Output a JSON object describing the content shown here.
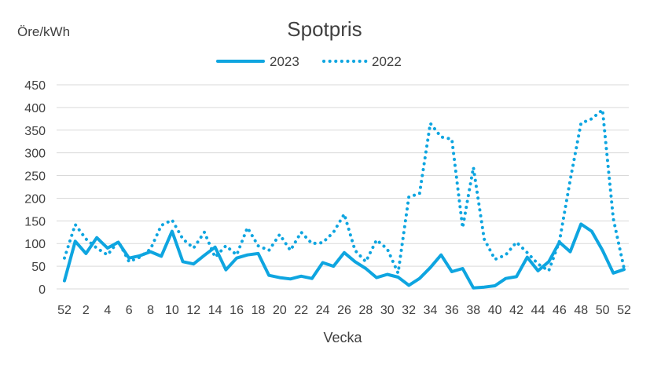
{
  "chart_data": {
    "type": "line",
    "title": "Spotpris",
    "ylabel": "Öre/kWh",
    "xlabel": "Vecka",
    "ylim": [
      0,
      450
    ],
    "yticks": [
      "0",
      "50",
      "100",
      "150",
      "200",
      "250",
      "300",
      "350",
      "400",
      "450"
    ],
    "xticks": [
      "52",
      "2",
      "4",
      "6",
      "8",
      "10",
      "12",
      "14",
      "16",
      "18",
      "20",
      "22",
      "24",
      "26",
      "28",
      "30",
      "32",
      "34",
      "36",
      "38",
      "40",
      "42",
      "44",
      "46",
      "48",
      "50",
      "52"
    ],
    "grid": true,
    "legend": "top-center",
    "series": [
      {
        "name": "2023",
        "style": "solid",
        "color": "#0ea5e0",
        "x": [
          52,
          1,
          2,
          3,
          4,
          5,
          6,
          7,
          8,
          9,
          10,
          11,
          12,
          13,
          14,
          15,
          16,
          17,
          18,
          19,
          20,
          21,
          22,
          23,
          24,
          25,
          26,
          27,
          28,
          29,
          30,
          31,
          32,
          33,
          34,
          35,
          36,
          37,
          38,
          39,
          40,
          41,
          42,
          43,
          44,
          45,
          46,
          47,
          48,
          49,
          50,
          51,
          52
        ],
        "values": [
          18,
          105,
          78,
          113,
          90,
          103,
          68,
          73,
          82,
          72,
          127,
          60,
          55,
          74,
          92,
          42,
          68,
          75,
          78,
          30,
          25,
          22,
          28,
          23,
          58,
          50,
          80,
          60,
          45,
          25,
          32,
          26,
          8,
          23,
          47,
          75,
          38,
          45,
          2,
          4,
          7,
          23,
          27,
          70,
          40,
          60,
          103,
          82,
          143,
          127,
          85,
          35,
          43
        ]
      },
      {
        "name": "2022",
        "style": "dotted",
        "color": "#0ea5e0",
        "x": [
          52,
          1,
          2,
          3,
          4,
          5,
          6,
          7,
          8,
          9,
          10,
          11,
          12,
          13,
          14,
          15,
          16,
          17,
          18,
          19,
          20,
          21,
          22,
          23,
          24,
          25,
          26,
          27,
          28,
          29,
          30,
          31,
          32,
          33,
          34,
          35,
          36,
          37,
          38,
          39,
          40,
          41,
          42,
          43,
          44,
          45,
          46,
          47,
          48,
          49,
          50,
          51,
          52
        ],
        "values": [
          68,
          142,
          110,
          90,
          75,
          105,
          60,
          70,
          88,
          140,
          152,
          110,
          90,
          125,
          70,
          95,
          75,
          135,
          95,
          85,
          120,
          85,
          125,
          100,
          102,
          125,
          165,
          85,
          60,
          108,
          88,
          35,
          203,
          210,
          365,
          335,
          330,
          135,
          268,
          110,
          65,
          75,
          103,
          80,
          55,
          40,
          105,
          240,
          365,
          375,
          395,
          155,
          45
        ]
      }
    ]
  }
}
